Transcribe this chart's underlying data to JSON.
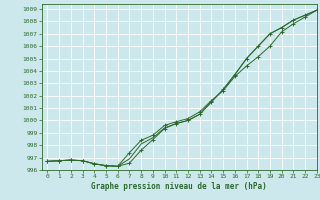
{
  "xlabel": "Graphe pression niveau de la mer (hPa)",
  "xlim": [
    -0.5,
    23
  ],
  "ylim": [
    996,
    1009.4
  ],
  "yticks": [
    996,
    997,
    998,
    999,
    1000,
    1001,
    1002,
    1003,
    1004,
    1005,
    1006,
    1007,
    1008,
    1009
  ],
  "xticks": [
    0,
    1,
    2,
    3,
    4,
    5,
    6,
    7,
    8,
    9,
    10,
    11,
    12,
    13,
    14,
    15,
    16,
    17,
    18,
    19,
    20,
    21,
    22,
    23
  ],
  "bg_color": "#cce8ec",
  "grid_color": "#ffffff",
  "line_color": "#2d6a2d",
  "line1_x": [
    0,
    1,
    2,
    3,
    4,
    5,
    6,
    7,
    8,
    9,
    10,
    11,
    12,
    13,
    14,
    15,
    16,
    17,
    18,
    19,
    20,
    21,
    22,
    23
  ],
  "line1_y": [
    996.7,
    996.75,
    996.8,
    996.75,
    996.5,
    996.35,
    996.3,
    996.55,
    997.6,
    998.45,
    999.35,
    999.75,
    1000.0,
    1000.5,
    1001.5,
    1002.5,
    1003.7,
    1005.0,
    1006.0,
    1007.0,
    1007.5,
    1008.1,
    1008.5,
    1008.9
  ],
  "line2_x": [
    0,
    1,
    2,
    3,
    4,
    5,
    6,
    7,
    8,
    9,
    10,
    11,
    12,
    13,
    14,
    15,
    16,
    17,
    18,
    19,
    20,
    21,
    22,
    23
  ],
  "line2_y": [
    996.7,
    996.75,
    996.8,
    996.75,
    996.5,
    996.35,
    996.3,
    996.9,
    998.1,
    998.6,
    999.4,
    999.75,
    1000.0,
    1000.5,
    1001.5,
    1002.5,
    1003.7,
    1005.0,
    1006.0,
    1007.0,
    1007.5,
    1008.1,
    1008.5,
    1008.9
  ],
  "line3_x": [
    0,
    1,
    2,
    3,
    4,
    5,
    6,
    7,
    8,
    9,
    10,
    11,
    12,
    13,
    14,
    15,
    16,
    17,
    18,
    19,
    20,
    21,
    22,
    23
  ],
  "line3_y": [
    996.7,
    996.75,
    996.8,
    996.75,
    996.5,
    996.35,
    996.3,
    997.4,
    998.4,
    998.8,
    999.6,
    999.9,
    1000.15,
    1000.7,
    1001.6,
    1002.4,
    1003.55,
    1004.4,
    1005.15,
    1006.0,
    1007.15,
    1007.8,
    1008.35,
    1008.9
  ]
}
